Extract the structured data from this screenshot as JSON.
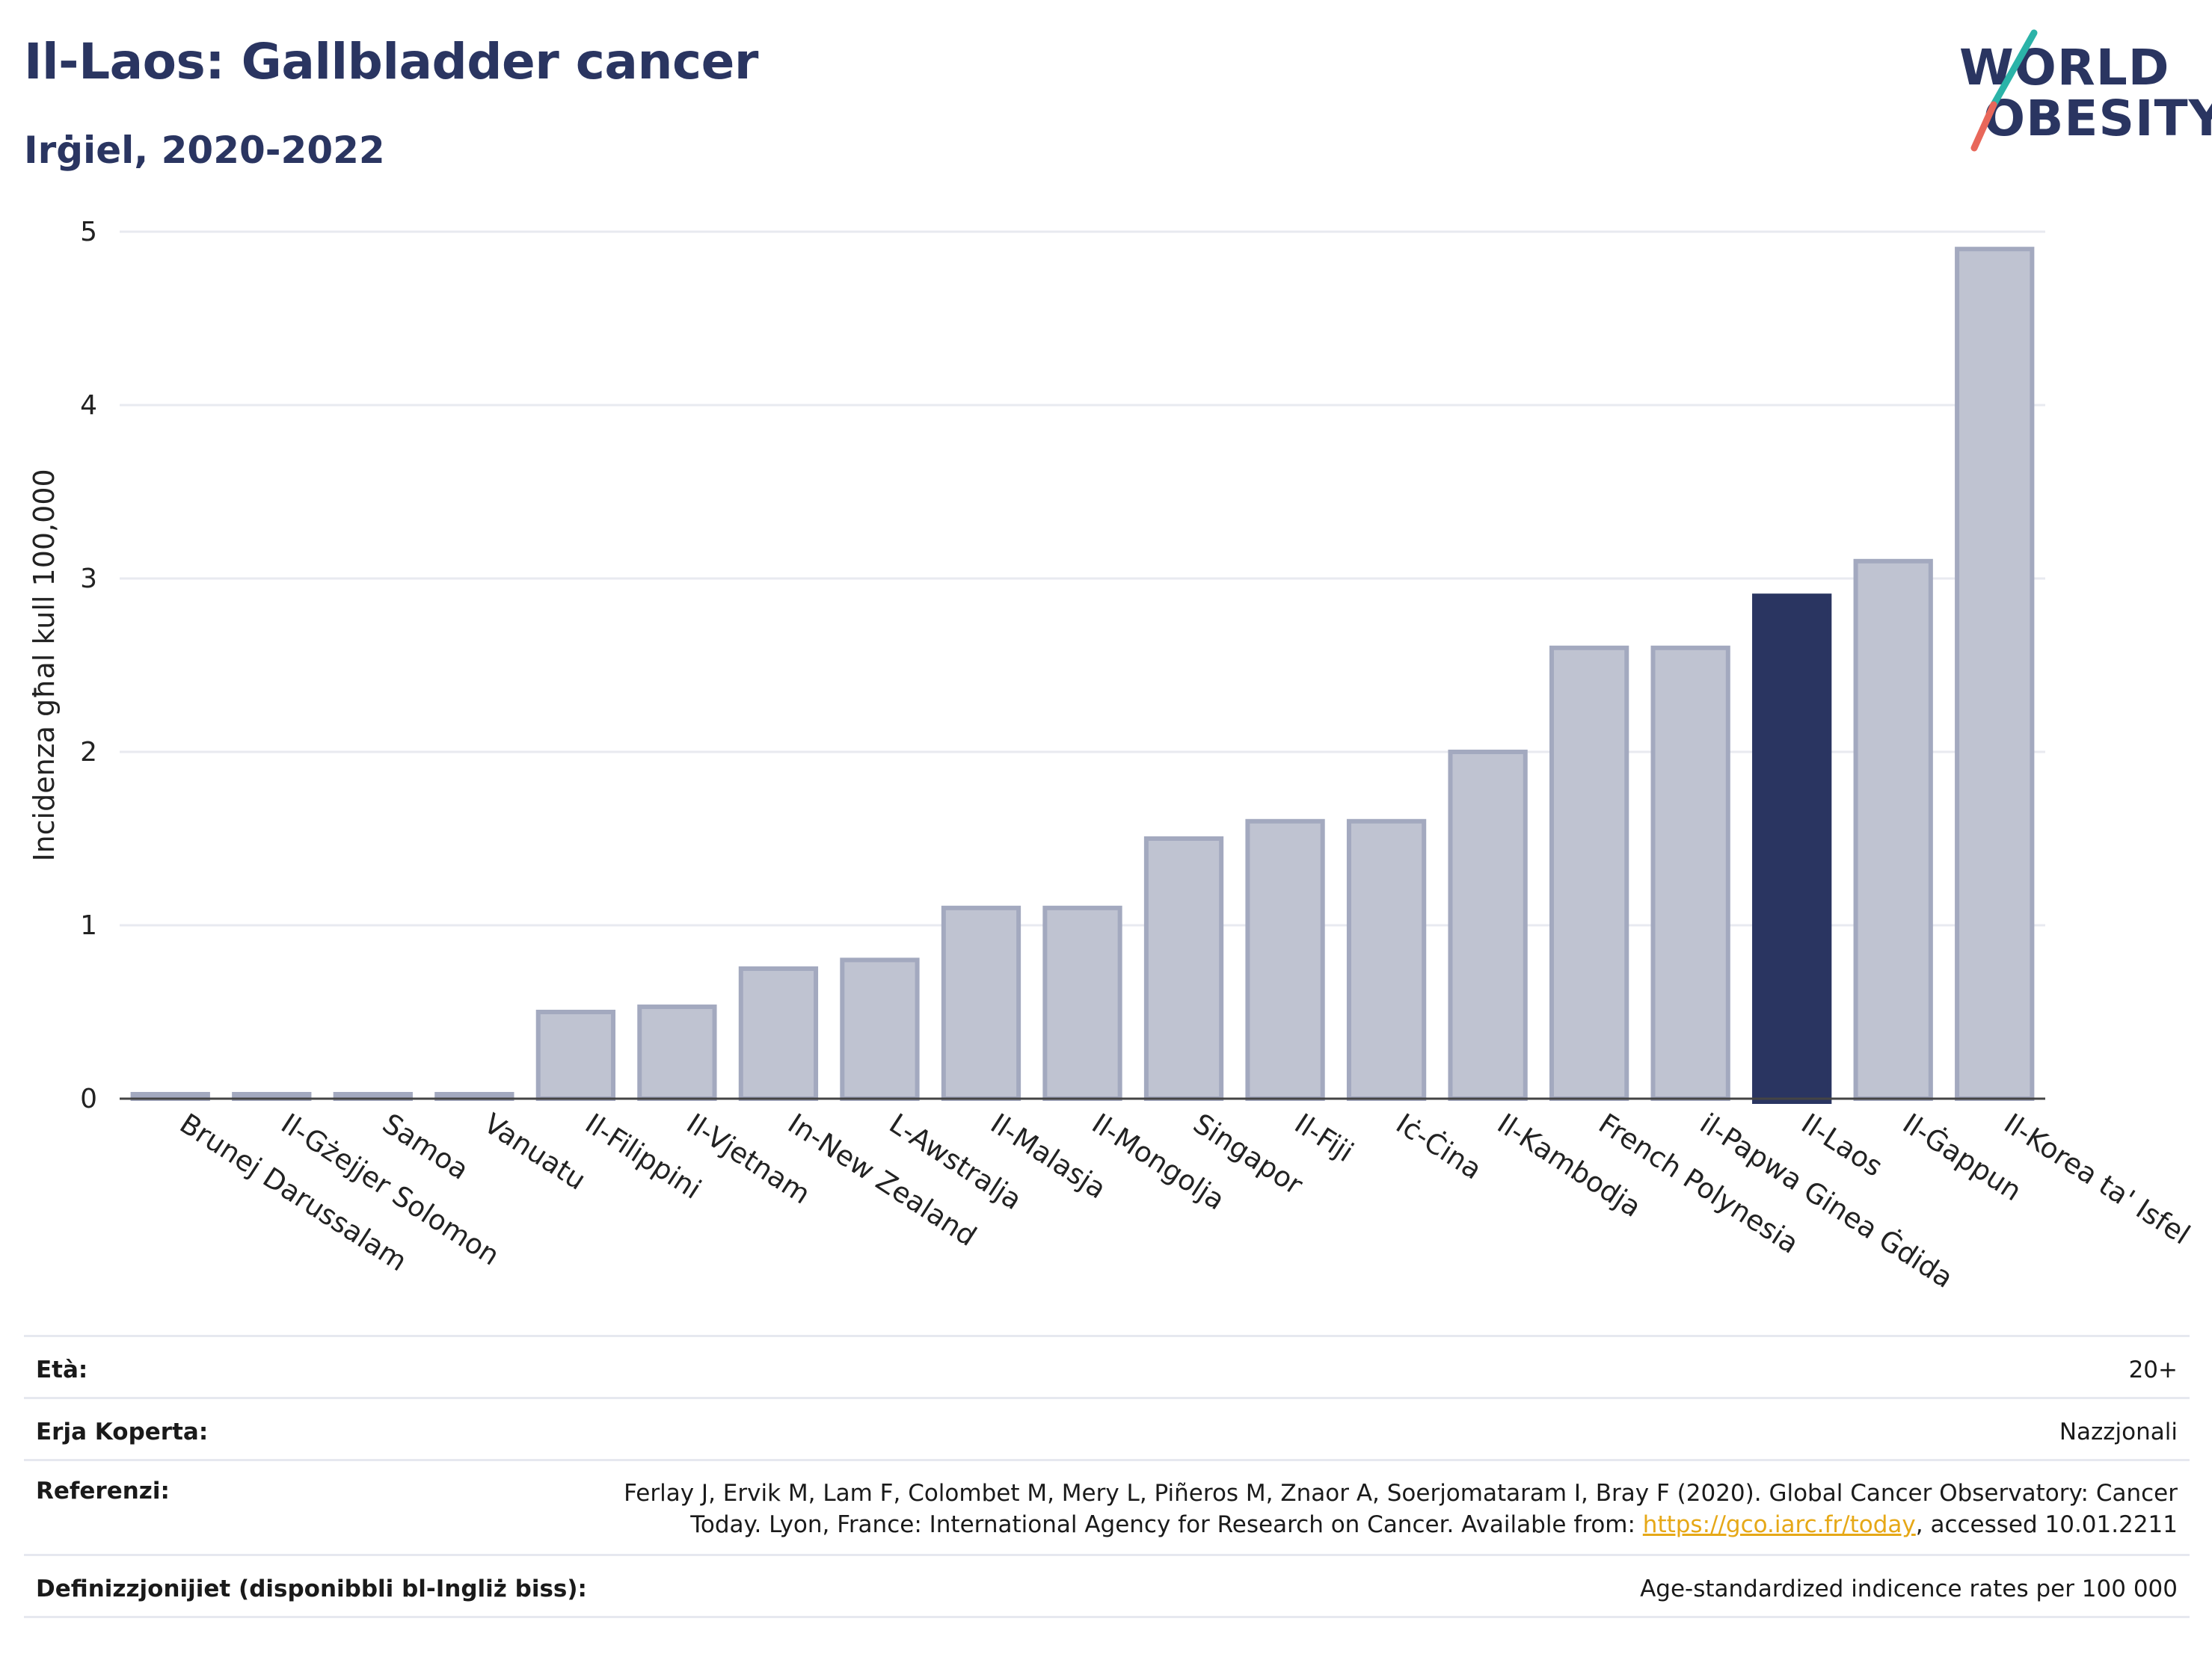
{
  "title": "Il-Laos: Gallbladder cancer",
  "subtitle": "Irġiel, 2020-2022",
  "logo": {
    "line1": "WORLD",
    "line2": "OBESITY"
  },
  "chart_data": {
    "type": "bar",
    "ylabel": "Incidenza għal kull 100,000",
    "xlabel": "",
    "ylim": [
      0,
      5
    ],
    "yticks": [
      0,
      1,
      2,
      3,
      4,
      5
    ],
    "grid": true,
    "categories": [
      "Brunej Darussalam",
      "Il-Gżejjer Solomon",
      "Samoa",
      "Vanuatu",
      "Il-Filippini",
      "Il-Vjetnam",
      "In-New Zealand",
      "L-Awstralja",
      "Il-Malasja",
      "Il-Mongolja",
      "Singapor",
      "Il-Fiji",
      "Iċ-Ċina",
      "Il-Kambodja",
      "French Polynesia",
      "il-Papwa Ginea Ġdida",
      "Il-Laos",
      "Il-Ġappun",
      "Il-Korea ta' Isfel"
    ],
    "values": [
      0.0,
      0.0,
      0.0,
      0.0,
      0.5,
      0.53,
      0.75,
      0.8,
      1.1,
      1.1,
      1.5,
      1.6,
      1.6,
      2.0,
      2.6,
      2.6,
      2.9,
      3.1,
      4.9
    ],
    "highlight": "Il-Laos",
    "colors": {
      "bar": "#bfc3d1",
      "bar_edge": "#a3a9bf",
      "highlight": "#2a3561",
      "grid": "#e8eaf0",
      "axis": "#444444"
    }
  },
  "footer": {
    "age_label": "Età:",
    "age_value": "20+",
    "area_label": "Erja Koperta:",
    "area_value": "Nazzjonali",
    "ref_label": "Referenzi:",
    "ref_line1": "Ferlay J, Ervik M, Lam F, Colombet M, Mery L, Piñeros M, Znaor A, Soerjomataram I, Bray F (2020). Global Cancer Observatory: Cancer",
    "ref_line2_pre": "Today. Lyon, France: International Agency for Research on Cancer. Available from: ",
    "ref_link": "https://gco.iarc.fr/today",
    "ref_line2_post": ", accessed 10.01.2211",
    "def_label": "Definizzjonijiet (disponibbli bl-Ingliż biss):",
    "def_value": "Age-standardized indicence rates per 100 000"
  }
}
